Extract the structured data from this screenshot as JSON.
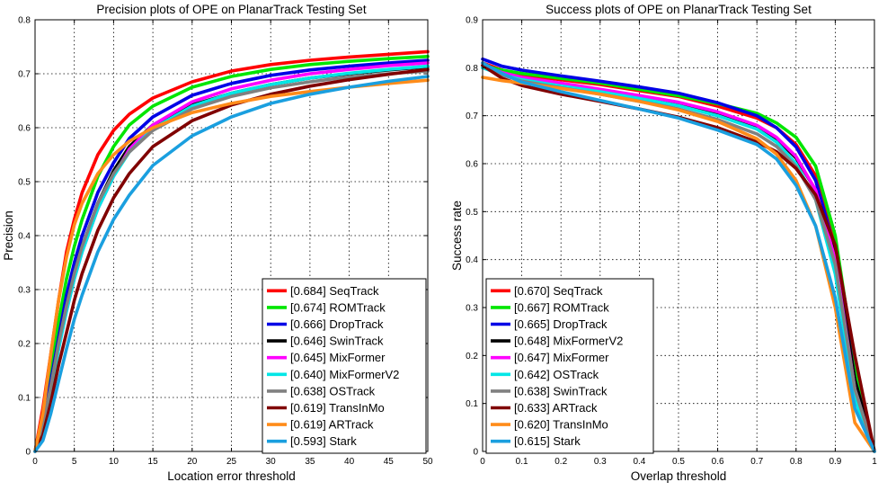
{
  "chart_data": [
    {
      "type": "line",
      "title": "Precision plots of OPE on PlanarTrack Testing Set",
      "xlabel": "Location error threshold",
      "ylabel": "Precision",
      "xlim": [
        0,
        50
      ],
      "ylim": [
        0,
        0.8
      ],
      "xticks": [
        0,
        5,
        10,
        15,
        20,
        25,
        30,
        35,
        40,
        45,
        50
      ],
      "yticks": [
        0,
        0.1,
        0.2,
        0.3,
        0.4,
        0.5,
        0.6,
        0.7,
        0.8
      ],
      "grid": true,
      "legend_position": "bottom-right",
      "series": [
        {
          "name": "[0.684] SeqTrack",
          "color": "#ff0000",
          "x": [
            0,
            1,
            2,
            3,
            4,
            5,
            6,
            8,
            10,
            12,
            15,
            20,
            25,
            30,
            35,
            40,
            45,
            50
          ],
          "values": [
            0,
            0.08,
            0.18,
            0.28,
            0.37,
            0.43,
            0.48,
            0.55,
            0.595,
            0.625,
            0.655,
            0.685,
            0.705,
            0.717,
            0.725,
            0.731,
            0.736,
            0.741
          ]
        },
        {
          "name": "[0.674] ROMTrack",
          "color": "#00e600",
          "x": [
            0,
            1,
            2,
            3,
            4,
            5,
            6,
            8,
            10,
            12,
            15,
            20,
            25,
            30,
            35,
            40,
            45,
            50
          ],
          "values": [
            0,
            0.06,
            0.15,
            0.24,
            0.32,
            0.38,
            0.43,
            0.51,
            0.565,
            0.605,
            0.64,
            0.675,
            0.695,
            0.708,
            0.717,
            0.723,
            0.728,
            0.732
          ]
        },
        {
          "name": "[0.666] DropTrack",
          "color": "#0000e6",
          "x": [
            0,
            1,
            2,
            3,
            4,
            5,
            6,
            8,
            10,
            12,
            15,
            20,
            25,
            30,
            35,
            40,
            45,
            50
          ],
          "values": [
            0,
            0.05,
            0.13,
            0.21,
            0.29,
            0.35,
            0.4,
            0.48,
            0.535,
            0.58,
            0.62,
            0.66,
            0.682,
            0.697,
            0.707,
            0.714,
            0.72,
            0.725
          ]
        },
        {
          "name": "[0.646] SwinTrack",
          "color": "#000000",
          "x": [
            0,
            1,
            2,
            3,
            4,
            5,
            6,
            8,
            10,
            12,
            15,
            20,
            25,
            30,
            35,
            40,
            45,
            50
          ],
          "values": [
            0,
            0.05,
            0.12,
            0.2,
            0.27,
            0.33,
            0.38,
            0.46,
            0.52,
            0.565,
            0.605,
            0.642,
            0.664,
            0.68,
            0.692,
            0.7,
            0.707,
            0.713
          ]
        },
        {
          "name": "[0.645] MixFormer",
          "color": "#ff00ff",
          "x": [
            0,
            1,
            2,
            3,
            4,
            5,
            6,
            8,
            10,
            12,
            15,
            20,
            25,
            30,
            35,
            40,
            45,
            50
          ],
          "values": [
            0,
            0.04,
            0.11,
            0.19,
            0.26,
            0.32,
            0.37,
            0.45,
            0.51,
            0.56,
            0.605,
            0.648,
            0.672,
            0.688,
            0.7,
            0.708,
            0.715,
            0.72
          ]
        },
        {
          "name": "[0.640] MixFormerV2",
          "color": "#00e6e6",
          "x": [
            0,
            1,
            2,
            3,
            4,
            5,
            6,
            8,
            10,
            12,
            15,
            20,
            25,
            30,
            35,
            40,
            45,
            50
          ],
          "values": [
            0,
            0.04,
            0.11,
            0.19,
            0.26,
            0.32,
            0.37,
            0.45,
            0.51,
            0.555,
            0.598,
            0.64,
            0.664,
            0.68,
            0.692,
            0.701,
            0.708,
            0.714
          ]
        },
        {
          "name": "[0.638] OSTrack",
          "color": "#808080",
          "x": [
            0,
            1,
            2,
            3,
            4,
            5,
            6,
            8,
            10,
            12,
            15,
            20,
            25,
            30,
            35,
            40,
            45,
            50
          ],
          "values": [
            0,
            0.05,
            0.12,
            0.2,
            0.27,
            0.33,
            0.38,
            0.46,
            0.515,
            0.555,
            0.595,
            0.635,
            0.658,
            0.674,
            0.685,
            0.694,
            0.7,
            0.705
          ]
        },
        {
          "name": "[0.619] TransInMo",
          "color": "#800000",
          "x": [
            0,
            1,
            2,
            3,
            4,
            5,
            6,
            8,
            10,
            12,
            15,
            20,
            25,
            30,
            35,
            40,
            45,
            50
          ],
          "values": [
            0,
            0.03,
            0.09,
            0.16,
            0.22,
            0.28,
            0.33,
            0.41,
            0.47,
            0.515,
            0.565,
            0.613,
            0.642,
            0.662,
            0.677,
            0.689,
            0.699,
            0.708
          ]
        },
        {
          "name": "[0.619] ARTrack",
          "color": "#ff8c1a",
          "x": [
            0,
            1,
            2,
            3,
            4,
            5,
            6,
            8,
            10,
            12,
            15,
            20,
            25,
            30,
            35,
            40,
            45,
            50
          ],
          "values": [
            0,
            0.07,
            0.18,
            0.28,
            0.36,
            0.42,
            0.46,
            0.515,
            0.55,
            0.575,
            0.6,
            0.628,
            0.645,
            0.658,
            0.667,
            0.675,
            0.682,
            0.688
          ]
        },
        {
          "name": "[0.593] Stark",
          "color": "#1a9fdf",
          "x": [
            0,
            1,
            2,
            3,
            4,
            5,
            6,
            8,
            10,
            12,
            15,
            20,
            25,
            30,
            35,
            40,
            45,
            50
          ],
          "values": [
            0,
            0.02,
            0.07,
            0.13,
            0.19,
            0.245,
            0.29,
            0.37,
            0.43,
            0.475,
            0.53,
            0.585,
            0.62,
            0.645,
            0.662,
            0.675,
            0.686,
            0.695
          ]
        }
      ]
    },
    {
      "type": "line",
      "title": "Success plots of OPE on PlanarTrack Testing Set",
      "xlabel": "Overlap threshold",
      "ylabel": "Success rate",
      "xlim": [
        0,
        1
      ],
      "ylim": [
        0,
        0.9
      ],
      "xticks": [
        0,
        0.1,
        0.2,
        0.3,
        0.4,
        0.5,
        0.6,
        0.7,
        0.8,
        0.9,
        1
      ],
      "yticks": [
        0,
        0.1,
        0.2,
        0.3,
        0.4,
        0.5,
        0.6,
        0.7,
        0.8,
        0.9
      ],
      "grid": true,
      "legend_position": "bottom-left",
      "series": [
        {
          "name": "[0.670] SeqTrack",
          "color": "#ff0000",
          "x": [
            0,
            0.05,
            0.1,
            0.2,
            0.3,
            0.4,
            0.5,
            0.6,
            0.7,
            0.75,
            0.8,
            0.85,
            0.9,
            0.95,
            1
          ],
          "values": [
            0.81,
            0.795,
            0.785,
            0.775,
            0.765,
            0.752,
            0.74,
            0.72,
            0.695,
            0.675,
            0.64,
            0.575,
            0.43,
            0.16,
            0
          ]
        },
        {
          "name": "[0.667] ROMTrack",
          "color": "#00e600",
          "x": [
            0,
            0.05,
            0.1,
            0.2,
            0.3,
            0.4,
            0.5,
            0.6,
            0.7,
            0.75,
            0.8,
            0.85,
            0.9,
            0.95,
            1
          ],
          "values": [
            0.805,
            0.795,
            0.788,
            0.778,
            0.768,
            0.755,
            0.742,
            0.725,
            0.705,
            0.685,
            0.655,
            0.595,
            0.45,
            0.18,
            0
          ]
        },
        {
          "name": "[0.665] DropTrack",
          "color": "#0000e6",
          "x": [
            0,
            0.05,
            0.1,
            0.2,
            0.3,
            0.4,
            0.5,
            0.6,
            0.7,
            0.75,
            0.8,
            0.85,
            0.9,
            0.95,
            1
          ],
          "values": [
            0.818,
            0.803,
            0.795,
            0.783,
            0.772,
            0.76,
            0.747,
            0.727,
            0.7,
            0.675,
            0.635,
            0.565,
            0.42,
            0.15,
            0
          ]
        },
        {
          "name": "[0.648] MixFormerV2",
          "color": "#000000",
          "x": [
            0,
            0.05,
            0.1,
            0.2,
            0.3,
            0.4,
            0.5,
            0.6,
            0.7,
            0.75,
            0.8,
            0.85,
            0.9,
            0.95,
            1
          ],
          "values": [
            0.8,
            0.787,
            0.778,
            0.765,
            0.752,
            0.739,
            0.724,
            0.705,
            0.677,
            0.652,
            0.612,
            0.545,
            0.41,
            0.15,
            0
          ]
        },
        {
          "name": "[0.647] MixFormer",
          "color": "#ff00ff",
          "x": [
            0,
            0.05,
            0.1,
            0.2,
            0.3,
            0.4,
            0.5,
            0.6,
            0.7,
            0.75,
            0.8,
            0.85,
            0.9,
            0.95,
            1
          ],
          "values": [
            0.805,
            0.79,
            0.78,
            0.768,
            0.755,
            0.742,
            0.728,
            0.708,
            0.68,
            0.655,
            0.615,
            0.545,
            0.4,
            0.13,
            0
          ]
        },
        {
          "name": "[0.642] OSTrack",
          "color": "#00e6e6",
          "x": [
            0,
            0.05,
            0.1,
            0.2,
            0.3,
            0.4,
            0.5,
            0.6,
            0.7,
            0.75,
            0.8,
            0.85,
            0.9,
            0.95,
            1
          ],
          "values": [
            0.8,
            0.785,
            0.775,
            0.762,
            0.75,
            0.736,
            0.721,
            0.7,
            0.672,
            0.645,
            0.6,
            0.525,
            0.37,
            0.11,
            0
          ]
        },
        {
          "name": "[0.638] SwinTrack",
          "color": "#808080",
          "x": [
            0,
            0.05,
            0.1,
            0.2,
            0.3,
            0.4,
            0.5,
            0.6,
            0.7,
            0.75,
            0.8,
            0.85,
            0.9,
            0.95,
            1
          ],
          "values": [
            0.805,
            0.785,
            0.772,
            0.758,
            0.745,
            0.73,
            0.714,
            0.692,
            0.662,
            0.636,
            0.594,
            0.525,
            0.39,
            0.13,
            0
          ]
        },
        {
          "name": "[0.633] ARTrack",
          "color": "#800000",
          "x": [
            0,
            0.05,
            0.1,
            0.2,
            0.3,
            0.4,
            0.5,
            0.6,
            0.7,
            0.75,
            0.8,
            0.85,
            0.9,
            0.95,
            1
          ],
          "values": [
            0.805,
            0.778,
            0.763,
            0.745,
            0.73,
            0.714,
            0.697,
            0.675,
            0.645,
            0.625,
            0.59,
            0.535,
            0.43,
            0.2,
            0
          ]
        },
        {
          "name": "[0.620] TransInMo",
          "color": "#ff8c1a",
          "x": [
            0,
            0.05,
            0.1,
            0.2,
            0.3,
            0.4,
            0.5,
            0.6,
            0.7,
            0.75,
            0.8,
            0.85,
            0.9,
            0.95,
            1
          ],
          "values": [
            0.78,
            0.773,
            0.768,
            0.757,
            0.745,
            0.73,
            0.712,
            0.688,
            0.652,
            0.62,
            0.565,
            0.47,
            0.3,
            0.06,
            0
          ]
        },
        {
          "name": "[0.615] Stark",
          "color": "#1a9fdf",
          "x": [
            0,
            0.05,
            0.1,
            0.2,
            0.3,
            0.4,
            0.5,
            0.6,
            0.7,
            0.75,
            0.8,
            0.85,
            0.9,
            0.95,
            1
          ],
          "values": [
            0.81,
            0.788,
            0.77,
            0.75,
            0.732,
            0.714,
            0.695,
            0.67,
            0.64,
            0.61,
            0.555,
            0.47,
            0.32,
            0.09,
            0
          ]
        }
      ]
    }
  ]
}
